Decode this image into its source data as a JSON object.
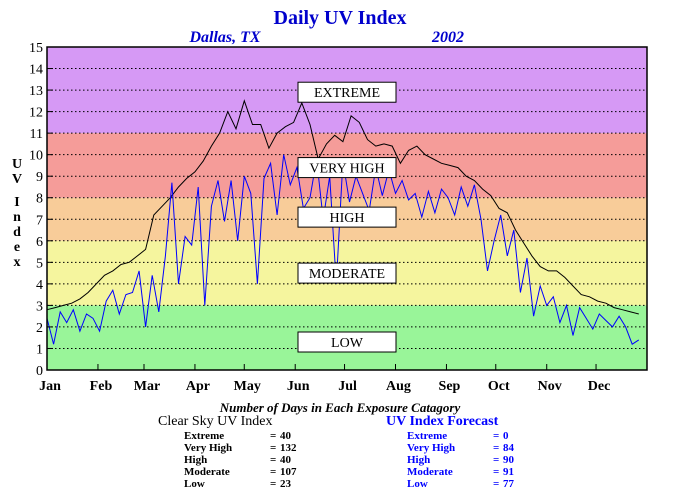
{
  "header": {
    "title": "Daily UV Index",
    "location": "Dallas, TX",
    "year": "2002"
  },
  "colors": {
    "title": "#0000cc",
    "clear_sky_line": "#000000",
    "forecast_line": "#0000ff",
    "band_low": "#99f599",
    "band_moderate": "#f5f59e",
    "band_high": "#f8cc99",
    "band_very_high": "#f59c99",
    "band_extreme": "#d699f5"
  },
  "chart_data": {
    "type": "line",
    "title": "Daily UV Index",
    "subtitle_left": "Dallas, TX",
    "subtitle_right": "2002",
    "ylabel": "UV Index",
    "xlabel": "",
    "ylim": [
      0,
      15
    ],
    "xlim": [
      0,
      365
    ],
    "grid": "horizontal dotted",
    "y_ticks": [
      "0",
      "1",
      "2",
      "3",
      "4",
      "5",
      "6",
      "7",
      "8",
      "9",
      "10",
      "11",
      "12",
      "13",
      "14",
      "15"
    ],
    "x_ticks": [
      {
        "label": "Jan",
        "day": 0
      },
      {
        "label": "Feb",
        "day": 31
      },
      {
        "label": "Mar",
        "day": 59
      },
      {
        "label": "Apr",
        "day": 90
      },
      {
        "label": "May",
        "day": 120
      },
      {
        "label": "Jun",
        "day": 151
      },
      {
        "label": "Jul",
        "day": 181
      },
      {
        "label": "Aug",
        "day": 212
      },
      {
        "label": "Sep",
        "day": 243
      },
      {
        "label": "Oct",
        "day": 273
      },
      {
        "label": "Nov",
        "day": 304
      },
      {
        "label": "Dec",
        "day": 334
      }
    ],
    "bands": [
      {
        "name": "LOW",
        "from": 0,
        "to": 3,
        "color": "#99f599",
        "label_y": 1.3
      },
      {
        "name": "MODERATE",
        "from": 3,
        "to": 6,
        "color": "#f5f59e",
        "label_y": 4.5
      },
      {
        "name": "HIGH",
        "from": 6,
        "to": 8,
        "color": "#f8cc99",
        "label_y": 7.1
      },
      {
        "name": "VERY HIGH",
        "from": 8,
        "to": 11,
        "color": "#f59c99",
        "label_y": 9.4
      },
      {
        "name": "EXTREME",
        "from": 11,
        "to": 15,
        "color": "#d699f5",
        "label_y": 12.9
      }
    ],
    "series": [
      {
        "name": "Clear Sky UV Index",
        "color": "#000000",
        "x": [
          0,
          5,
          10,
          15,
          20,
          25,
          30,
          35,
          40,
          45,
          50,
          55,
          60,
          65,
          70,
          75,
          80,
          85,
          90,
          95,
          100,
          105,
          110,
          115,
          120,
          125,
          130,
          135,
          140,
          145,
          150,
          155,
          160,
          165,
          170,
          175,
          180,
          185,
          190,
          195,
          200,
          205,
          210,
          215,
          220,
          225,
          230,
          235,
          240,
          245,
          250,
          255,
          260,
          265,
          270,
          275,
          280,
          285,
          290,
          295,
          300,
          305,
          310,
          315,
          320,
          325,
          330,
          335,
          340,
          345,
          350,
          355,
          360
        ],
        "y": [
          2.8,
          2.9,
          3.0,
          3.1,
          3.3,
          3.6,
          4.0,
          4.4,
          4.6,
          4.9,
          5.0,
          5.3,
          5.6,
          7.2,
          7.6,
          8.0,
          8.5,
          8.9,
          9.2,
          9.7,
          10.4,
          11.0,
          12.0,
          11.2,
          12.5,
          11.4,
          11.4,
          10.3,
          11.0,
          11.3,
          11.5,
          12.4,
          11.4,
          9.8,
          10.5,
          10.9,
          10.6,
          11.8,
          11.5,
          10.7,
          10.4,
          10.5,
          10.4,
          9.6,
          10.2,
          10.4,
          10.0,
          9.8,
          9.6,
          9.5,
          9.4,
          9.0,
          8.8,
          8.4,
          8.1,
          7.5,
          7.3,
          6.5,
          5.9,
          5.3,
          4.8,
          4.6,
          4.6,
          4.3,
          3.9,
          3.5,
          3.4,
          3.2,
          3.1,
          2.9,
          2.8,
          2.7,
          2.6
        ]
      },
      {
        "name": "UV Index Forecast",
        "color": "#0000ff",
        "x": [
          0,
          4,
          8,
          12,
          16,
          20,
          24,
          28,
          32,
          36,
          40,
          44,
          48,
          52,
          56,
          60,
          64,
          68,
          72,
          76,
          80,
          84,
          88,
          92,
          96,
          100,
          104,
          108,
          112,
          116,
          120,
          124,
          128,
          132,
          136,
          140,
          144,
          148,
          152,
          156,
          160,
          164,
          168,
          172,
          176,
          180,
          184,
          188,
          192,
          196,
          200,
          204,
          208,
          212,
          216,
          220,
          224,
          228,
          232,
          236,
          240,
          244,
          248,
          252,
          256,
          260,
          264,
          268,
          272,
          276,
          280,
          284,
          288,
          292,
          296,
          300,
          304,
          308,
          312,
          316,
          320,
          324,
          328,
          332,
          336,
          340,
          344,
          348,
          352,
          356,
          360
        ],
        "y": [
          2.4,
          1.2,
          2.7,
          2.2,
          2.8,
          1.8,
          2.6,
          2.4,
          1.8,
          3.2,
          3.7,
          2.6,
          3.5,
          3.6,
          4.6,
          2.0,
          4.4,
          2.7,
          5.3,
          8.7,
          4.0,
          6.2,
          5.8,
          8.5,
          3.0,
          7.6,
          8.8,
          6.9,
          8.8,
          6.0,
          9.0,
          8.2,
          4.0,
          8.9,
          9.6,
          7.2,
          10.0,
          8.6,
          9.4,
          7.5,
          8.0,
          9.8,
          7.0,
          9.0,
          4.0,
          9.7,
          7.8,
          9.0,
          8.2,
          7.4,
          9.4,
          8.1,
          9.3,
          8.2,
          8.8,
          7.9,
          8.2,
          7.1,
          8.3,
          7.3,
          8.4,
          8.0,
          7.2,
          8.5,
          7.6,
          8.6,
          7.0,
          4.6,
          6.0,
          7.2,
          5.3,
          6.5,
          3.6,
          5.2,
          2.5,
          3.9,
          3.0,
          3.4,
          2.2,
          3.0,
          1.6,
          2.9,
          2.4,
          1.9,
          2.6,
          2.3,
          2.0,
          2.5,
          2.0,
          1.2,
          1.4
        ]
      }
    ]
  },
  "stats": {
    "heading": "Number of Days in Each Exposure Catagory",
    "clear_sky": {
      "title": "Clear Sky UV Index",
      "rows": [
        {
          "label": "Extreme",
          "value": "40"
        },
        {
          "label": "Very High",
          "value": "132"
        },
        {
          "label": "High",
          "value": "40"
        },
        {
          "label": "Moderate",
          "value": "107"
        },
        {
          "label": "Low",
          "value": "23"
        }
      ]
    },
    "forecast": {
      "title": "UV Index Forecast",
      "rows": [
        {
          "label": "Extreme",
          "value": "0"
        },
        {
          "label": "Very High",
          "value": "84"
        },
        {
          "label": "High",
          "value": "90"
        },
        {
          "label": "Moderate",
          "value": "91"
        },
        {
          "label": "Low",
          "value": "77"
        }
      ]
    }
  }
}
